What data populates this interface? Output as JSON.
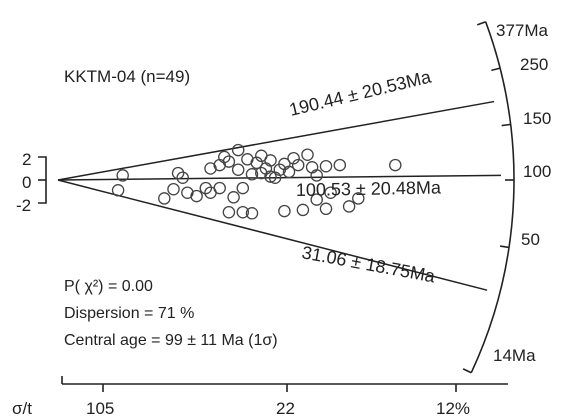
{
  "chart_data": {
    "type": "scatter",
    "subtype": "radial-plot",
    "title": "KKTM-04 (n=49)",
    "central_ray_labels": [
      "190.44 ± 20.53Ma",
      "100.53 ± 20.48Ma",
      "31.06 ± 18.75Ma"
    ],
    "radial_scale": {
      "ticks": [
        "377Ma",
        "250",
        "150",
        "100",
        "50",
        "14Ma"
      ]
    },
    "y_axis": {
      "tick_labels": [
        "2",
        "0",
        "-2"
      ]
    },
    "x_axis": {
      "label": "σ/t",
      "tick_labels": [
        "105",
        "22",
        "12%"
      ]
    },
    "stats": {
      "p_chi2": "P( χ²) = 0.00",
      "dispersion": "Dispersion = 71 %",
      "central_age": "Central age = 99 ± 11 Ma (1σ)"
    },
    "points": [
      {
        "x": 0.14,
        "y": 0.4
      },
      {
        "x": 0.13,
        "y": -0.9
      },
      {
        "x": 0.26,
        "y": 0.6
      },
      {
        "x": 0.27,
        "y": 0.2
      },
      {
        "x": 0.23,
        "y": -1.6
      },
      {
        "x": 0.25,
        "y": -0.8
      },
      {
        "x": 0.28,
        "y": -1.1
      },
      {
        "x": 0.3,
        "y": -1.4
      },
      {
        "x": 0.32,
        "y": -0.7
      },
      {
        "x": 0.33,
        "y": -1.1
      },
      {
        "x": 0.33,
        "y": 1.0
      },
      {
        "x": 0.35,
        "y": 1.3
      },
      {
        "x": 0.35,
        "y": -0.7
      },
      {
        "x": 0.36,
        "y": 2.0
      },
      {
        "x": 0.37,
        "y": 1.6
      },
      {
        "x": 0.37,
        "y": -2.8
      },
      {
        "x": 0.38,
        "y": -1.5
      },
      {
        "x": 0.39,
        "y": 2.6
      },
      {
        "x": 0.39,
        "y": 0.9
      },
      {
        "x": 0.4,
        "y": -0.7
      },
      {
        "x": 0.4,
        "y": -2.8
      },
      {
        "x": 0.41,
        "y": 1.8
      },
      {
        "x": 0.42,
        "y": 0.5
      },
      {
        "x": 0.42,
        "y": -2.9
      },
      {
        "x": 0.43,
        "y": 1.5
      },
      {
        "x": 0.44,
        "y": 2.1
      },
      {
        "x": 0.44,
        "y": 0.6
      },
      {
        "x": 0.45,
        "y": 1.0
      },
      {
        "x": 0.46,
        "y": 1.7
      },
      {
        "x": 0.46,
        "y": 0.3
      },
      {
        "x": 0.47,
        "y": 0.2
      },
      {
        "x": 0.48,
        "y": 0.9
      },
      {
        "x": 0.49,
        "y": 1.4
      },
      {
        "x": 0.49,
        "y": -2.7
      },
      {
        "x": 0.5,
        "y": 0.7
      },
      {
        "x": 0.51,
        "y": 1.9
      },
      {
        "x": 0.52,
        "y": 1.3
      },
      {
        "x": 0.53,
        "y": -2.6
      },
      {
        "x": 0.54,
        "y": 2.2
      },
      {
        "x": 0.55,
        "y": 1.1
      },
      {
        "x": 0.56,
        "y": 0.4
      },
      {
        "x": 0.56,
        "y": -1.7
      },
      {
        "x": 0.58,
        "y": 1.2
      },
      {
        "x": 0.58,
        "y": -2.5
      },
      {
        "x": 0.59,
        "y": -1.1
      },
      {
        "x": 0.61,
        "y": 1.3
      },
      {
        "x": 0.63,
        "y": -2.3
      },
      {
        "x": 0.65,
        "y": -1.6
      },
      {
        "x": 0.73,
        "y": 1.3
      }
    ]
  }
}
